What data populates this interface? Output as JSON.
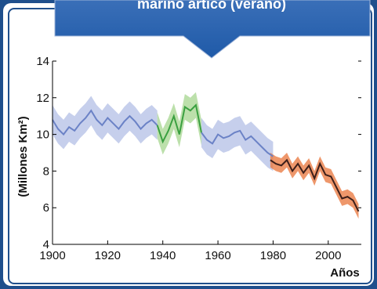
{
  "banner": {
    "title": "marino ártico (verano)"
  },
  "chart_data": {
    "type": "line",
    "title": "marino ártico (verano)",
    "xlabel": "Años",
    "ylabel": "(Millones Km²)",
    "xlim": [
      1900,
      2012
    ],
    "ylim": [
      4,
      14
    ],
    "xticks": [
      1900,
      1920,
      1940,
      1960,
      1980,
      2000
    ],
    "yticks": [
      4,
      6,
      8,
      10,
      12,
      14
    ],
    "grid": false,
    "series": [
      {
        "color": "#6b82c6",
        "band_color": "#b3bfe6",
        "x": [
          1900,
          1902,
          1904,
          1906,
          1908,
          1910,
          1912,
          1914,
          1916,
          1918,
          1920,
          1922,
          1924,
          1926,
          1928,
          1930,
          1932,
          1934,
          1936,
          1938
        ],
        "y": [
          10.8,
          10.3,
          10.0,
          10.4,
          10.2,
          10.6,
          10.9,
          11.3,
          10.8,
          10.5,
          10.9,
          10.6,
          10.3,
          10.7,
          11.0,
          10.7,
          10.3,
          10.6,
          10.8,
          10.5
        ],
        "band": [
          0.8,
          0.8,
          0.8,
          0.8,
          0.8,
          0.8,
          0.8,
          0.8,
          0.8,
          0.8,
          0.8,
          0.8,
          0.8,
          0.8,
          0.8,
          0.8,
          0.8,
          0.8,
          0.8,
          0.8
        ]
      },
      {
        "color": "#3aa040",
        "band_color": "#a6d68f",
        "x": [
          1938,
          1940,
          1942,
          1944,
          1946,
          1948,
          1950,
          1952,
          1954
        ],
        "y": [
          10.5,
          9.6,
          10.2,
          11.0,
          10.0,
          11.5,
          11.3,
          11.6,
          10.1
        ],
        "band": [
          0.7,
          0.7,
          0.7,
          0.7,
          0.7,
          0.7,
          0.7,
          0.7,
          0.7
        ]
      },
      {
        "color": "#6b82c6",
        "band_color": "#b3bfe6",
        "x": [
          1954,
          1956,
          1958,
          1960,
          1962,
          1964,
          1966,
          1968,
          1970,
          1972,
          1974,
          1976,
          1978,
          1980
        ],
        "y": [
          10.1,
          9.7,
          9.5,
          10.0,
          9.8,
          9.9,
          10.1,
          10.2,
          9.7,
          9.9,
          9.6,
          9.3,
          9.0,
          8.8
        ],
        "band": [
          0.8,
          0.8,
          0.8,
          0.8,
          0.8,
          0.8,
          0.8,
          0.8,
          0.8,
          0.8,
          0.8,
          0.8,
          0.8,
          0.8
        ]
      },
      {
        "color": "#3d1f1a",
        "band_color": "#e8743a",
        "x": [
          1979,
          1981,
          1983,
          1985,
          1987,
          1989,
          1991,
          1993,
          1995,
          1997,
          1999,
          2001,
          2003,
          2005,
          2007,
          2009,
          2011
        ],
        "y": [
          8.6,
          8.4,
          8.3,
          8.6,
          8.0,
          8.4,
          7.9,
          8.3,
          7.6,
          8.4,
          7.8,
          7.7,
          7.1,
          6.5,
          6.6,
          6.4,
          5.8
        ],
        "band": [
          0.4,
          0.4,
          0.4,
          0.4,
          0.4,
          0.4,
          0.4,
          0.4,
          0.4,
          0.4,
          0.4,
          0.4,
          0.4,
          0.4,
          0.4,
          0.4,
          0.4
        ]
      }
    ]
  }
}
